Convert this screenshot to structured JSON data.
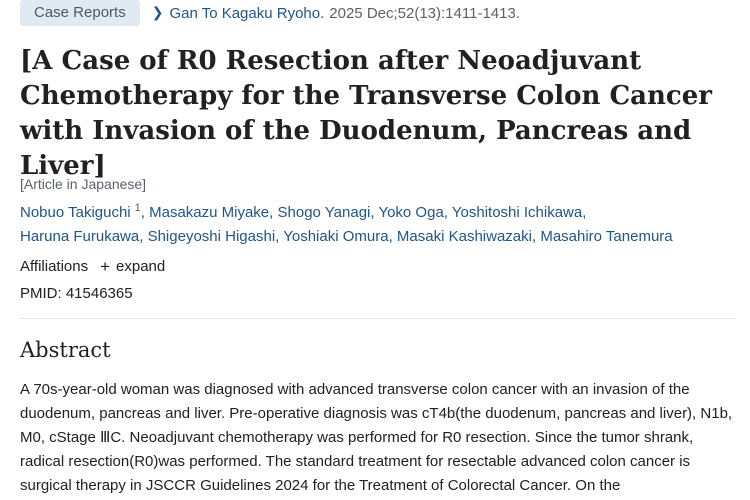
{
  "header": {
    "badge": "Case Reports",
    "journal": "Gan To Kagaku Ryoho.",
    "citation": "2025 Dec;52(13):1411-1413."
  },
  "title": "[A Case of R0 Resection after Neoadjuvant Chemotherapy for the Transverse Colon Cancer with Invasion of the Duodenum, Pancreas and Liver]",
  "language": "[Article in Japanese]",
  "authors": [
    {
      "name": "Nobuo Takiguchi",
      "sup": "1"
    },
    {
      "name": "Masakazu Miyake"
    },
    {
      "name": "Shogo Yanagi"
    },
    {
      "name": "Yoko Oga"
    },
    {
      "name": "Yoshitoshi Ichikawa"
    },
    {
      "name": "Haruna Furukawa"
    },
    {
      "name": "Shigeyoshi Higashi"
    },
    {
      "name": "Yoshiaki Omura"
    },
    {
      "name": "Masaki Kashiwazaki"
    },
    {
      "name": "Masahiro Tanemura"
    }
  ],
  "affiliations": {
    "label": "Affiliations",
    "expand_label": "expand"
  },
  "pmid": "PMID: 41546365",
  "abstract": {
    "heading": "Abstract",
    "text": "A 70s-year-old woman was diagnosed with advanced transverse colon cancer with an invasion of the duodenum, pancreas and liver. Pre-operative diagnosis was cT4b(the duodenum, pancreas and liver), N1b, M0, cStage ⅢC. Neoadjuvant chemotherapy was performed for R0 resection. Since the tumor shrank, radical resection(R0)was performed. The standard treatment for resectable advanced colon cancer is surgical therapy in JSCCR Guidelines 2024 for the Treatment of Colorectal Cancer. On the"
  }
}
